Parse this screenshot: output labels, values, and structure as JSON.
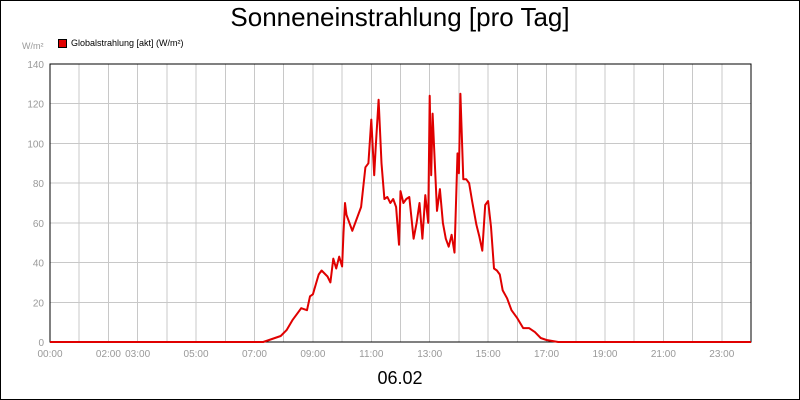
{
  "title": "Sonneneinstrahlung [pro Tag]",
  "unit_label": "W/m²",
  "date_label": "06.02",
  "colors": {
    "series": "#e00000",
    "grid": "#c8c8c8",
    "tick": "#999999"
  },
  "chart_data": {
    "type": "line",
    "title": "Sonneneinstrahlung [pro Tag]",
    "xlabel": "",
    "ylabel": "W/m²",
    "grid": true,
    "legend_position": "top-left",
    "xlim": [
      0,
      24
    ],
    "ylim": [
      0,
      140
    ],
    "x_ticks": [
      {
        "v": 0,
        "label": "00:00"
      },
      {
        "v": 2,
        "label": "02:00"
      },
      {
        "v": 3,
        "label": "03:00"
      },
      {
        "v": 5,
        "label": "05:00"
      },
      {
        "v": 7,
        "label": "07:00"
      },
      {
        "v": 9,
        "label": "09:00"
      },
      {
        "v": 11,
        "label": "11:00"
      },
      {
        "v": 13,
        "label": "13:00"
      },
      {
        "v": 15,
        "label": "15:00"
      },
      {
        "v": 17,
        "label": "17:00"
      },
      {
        "v": 19,
        "label": "19:00"
      },
      {
        "v": 21,
        "label": "21:00"
      },
      {
        "v": 23,
        "label": "23:00"
      }
    ],
    "y_ticks": [
      0,
      20,
      40,
      60,
      80,
      100,
      120,
      140
    ],
    "series": [
      {
        "name": "Globalstrahlung [akt] (W/m²)",
        "color": "#e00000",
        "x": [
          0,
          7.3,
          7.5,
          7.7,
          7.9,
          8.1,
          8.3,
          8.5,
          8.6,
          8.8,
          8.9,
          9.0,
          9.1,
          9.2,
          9.3,
          9.5,
          9.6,
          9.7,
          9.8,
          9.9,
          10.0,
          10.05,
          10.1,
          10.15,
          10.25,
          10.35,
          10.5,
          10.65,
          10.8,
          10.9,
          11.0,
          11.1,
          11.15,
          11.25,
          11.35,
          11.45,
          11.55,
          11.65,
          11.75,
          11.85,
          11.95,
          12.0,
          12.1,
          12.2,
          12.3,
          12.45,
          12.55,
          12.65,
          12.75,
          12.85,
          12.95,
          13.0,
          13.05,
          13.1,
          13.15,
          13.25,
          13.35,
          13.45,
          13.55,
          13.65,
          13.75,
          13.85,
          13.95,
          14.0,
          14.05,
          14.15,
          14.25,
          14.35,
          14.45,
          14.6,
          14.7,
          14.8,
          14.9,
          15.0,
          15.1,
          15.2,
          15.3,
          15.4,
          15.5,
          15.65,
          15.8,
          16.0,
          16.2,
          16.4,
          16.6,
          16.8,
          17.0,
          17.2,
          17.4,
          17.6,
          24
        ],
        "values": [
          0,
          0,
          1,
          2,
          3,
          6,
          11,
          15,
          17,
          16,
          23,
          24,
          29,
          34,
          36,
          33,
          30,
          42,
          37,
          43,
          38,
          55,
          70,
          64,
          60,
          56,
          62,
          68,
          88,
          90,
          112,
          84,
          98,
          122,
          90,
          72,
          73,
          70,
          72,
          68,
          49,
          76,
          70,
          72,
          73,
          52,
          60,
          70,
          52,
          74,
          60,
          124,
          84,
          115,
          98,
          66,
          77,
          60,
          52,
          48,
          54,
          45,
          95,
          85,
          125,
          82,
          82,
          80,
          71,
          59,
          53,
          46,
          69,
          71,
          58,
          37,
          36,
          34,
          26,
          22,
          16,
          12,
          7,
          7,
          5,
          2,
          1,
          0.5,
          0,
          0,
          0
        ]
      }
    ]
  }
}
